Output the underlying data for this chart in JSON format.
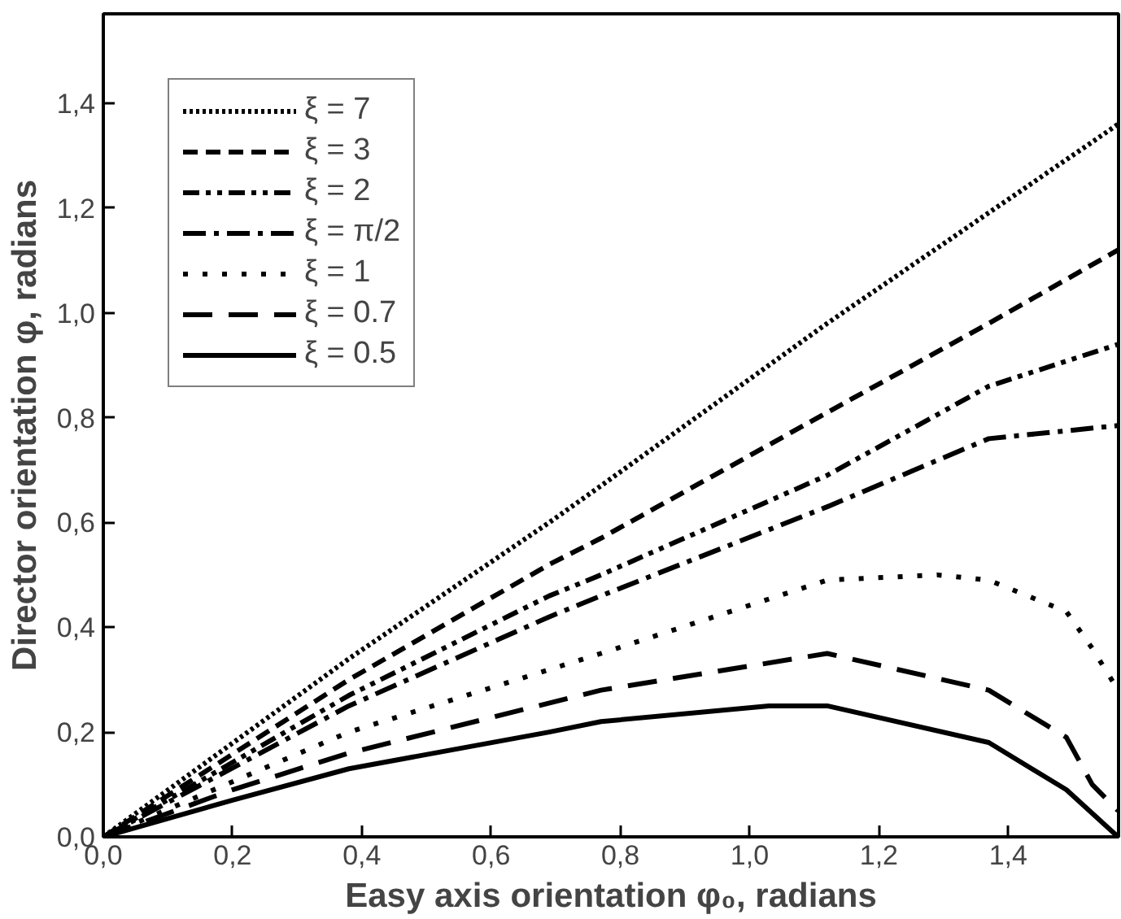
{
  "chart_data": {
    "type": "line",
    "xlabel": "Easy axis orientation φ₀, radians",
    "ylabel": "Director orientation φ, radians",
    "xlim": [
      0,
      1.5708
    ],
    "ylim": [
      0,
      1.5708
    ],
    "xticks": [
      {
        "value": 0,
        "label": "0,0"
      },
      {
        "value": 0.2,
        "label": "0,2"
      },
      {
        "value": 0.4,
        "label": "0,4"
      },
      {
        "value": 0.6,
        "label": "0,6"
      },
      {
        "value": 0.8,
        "label": "0,8"
      },
      {
        "value": 1.0,
        "label": "1,0"
      },
      {
        "value": 1.2,
        "label": "1,2"
      },
      {
        "value": 1.4,
        "label": "1,4"
      }
    ],
    "yticks": [
      {
        "value": 0,
        "label": "0,0"
      },
      {
        "value": 0.2,
        "label": "0,2"
      },
      {
        "value": 0.4,
        "label": "0,4"
      },
      {
        "value": 0.6,
        "label": "0,6"
      },
      {
        "value": 0.8,
        "label": "0,8"
      },
      {
        "value": 1.0,
        "label": "1,0"
      },
      {
        "value": 1.2,
        "label": "1,2"
      },
      {
        "value": 1.4,
        "label": "1,4"
      }
    ],
    "grid": false,
    "legend": "top left",
    "marker": "none",
    "series": [
      {
        "name": "ξ = 7",
        "color": "#000000",
        "line_style": "dotted",
        "x": [
          0,
          0.38,
          0.69,
          0.77,
          1.12,
          1.57
        ],
        "values": [
          0,
          0.34,
          0.6,
          0.67,
          0.98,
          1.36
        ]
      },
      {
        "name": "ξ = 3",
        "color": "#000000",
        "line_style": "dashed",
        "x": [
          0,
          0.38,
          0.69,
          0.77,
          1.12,
          1.37,
          1.57
        ],
        "values": [
          0,
          0.3,
          0.52,
          0.57,
          0.81,
          0.98,
          1.12
        ]
      },
      {
        "name": "ξ = 2",
        "color": "#000000",
        "line_style": "dashdotdot",
        "x": [
          0,
          0.38,
          0.69,
          0.77,
          1.12,
          1.37,
          1.57
        ],
        "values": [
          0,
          0.27,
          0.46,
          0.5,
          0.69,
          0.86,
          0.94
        ]
      },
      {
        "name": "ξ = π/2",
        "color": "#000000",
        "line_style": "dashdot",
        "x": [
          0,
          0.38,
          0.69,
          0.77,
          1.12,
          1.37,
          1.57
        ],
        "values": [
          0,
          0.25,
          0.42,
          0.46,
          0.63,
          0.76,
          0.785
        ]
      },
      {
        "name": "ξ = 1",
        "color": "#000000",
        "line_style": "sparsedotted",
        "x": [
          0,
          0.38,
          0.77,
          1.12,
          1.29,
          1.37,
          1.49,
          1.53,
          1.57
        ],
        "values": [
          0,
          0.2,
          0.35,
          0.49,
          0.5,
          0.49,
          0.43,
          0.36,
          0.28
        ]
      },
      {
        "name": "ξ = 0.7",
        "color": "#000000",
        "line_style": "longdash",
        "x": [
          0,
          0.2,
          0.38,
          0.77,
          1.12,
          1.37,
          1.49,
          1.53,
          1.57
        ],
        "values": [
          0,
          0.09,
          0.16,
          0.28,
          0.35,
          0.28,
          0.19,
          0.1,
          0.05
        ]
      },
      {
        "name": "ξ = 0.5",
        "color": "#000000",
        "line_style": "solid",
        "x": [
          0,
          0.2,
          0.38,
          0.69,
          0.77,
          1.03,
          1.12,
          1.37,
          1.49,
          1.57
        ],
        "values": [
          0,
          0.07,
          0.13,
          0.2,
          0.22,
          0.25,
          0.25,
          0.18,
          0.09,
          0
        ]
      }
    ]
  }
}
